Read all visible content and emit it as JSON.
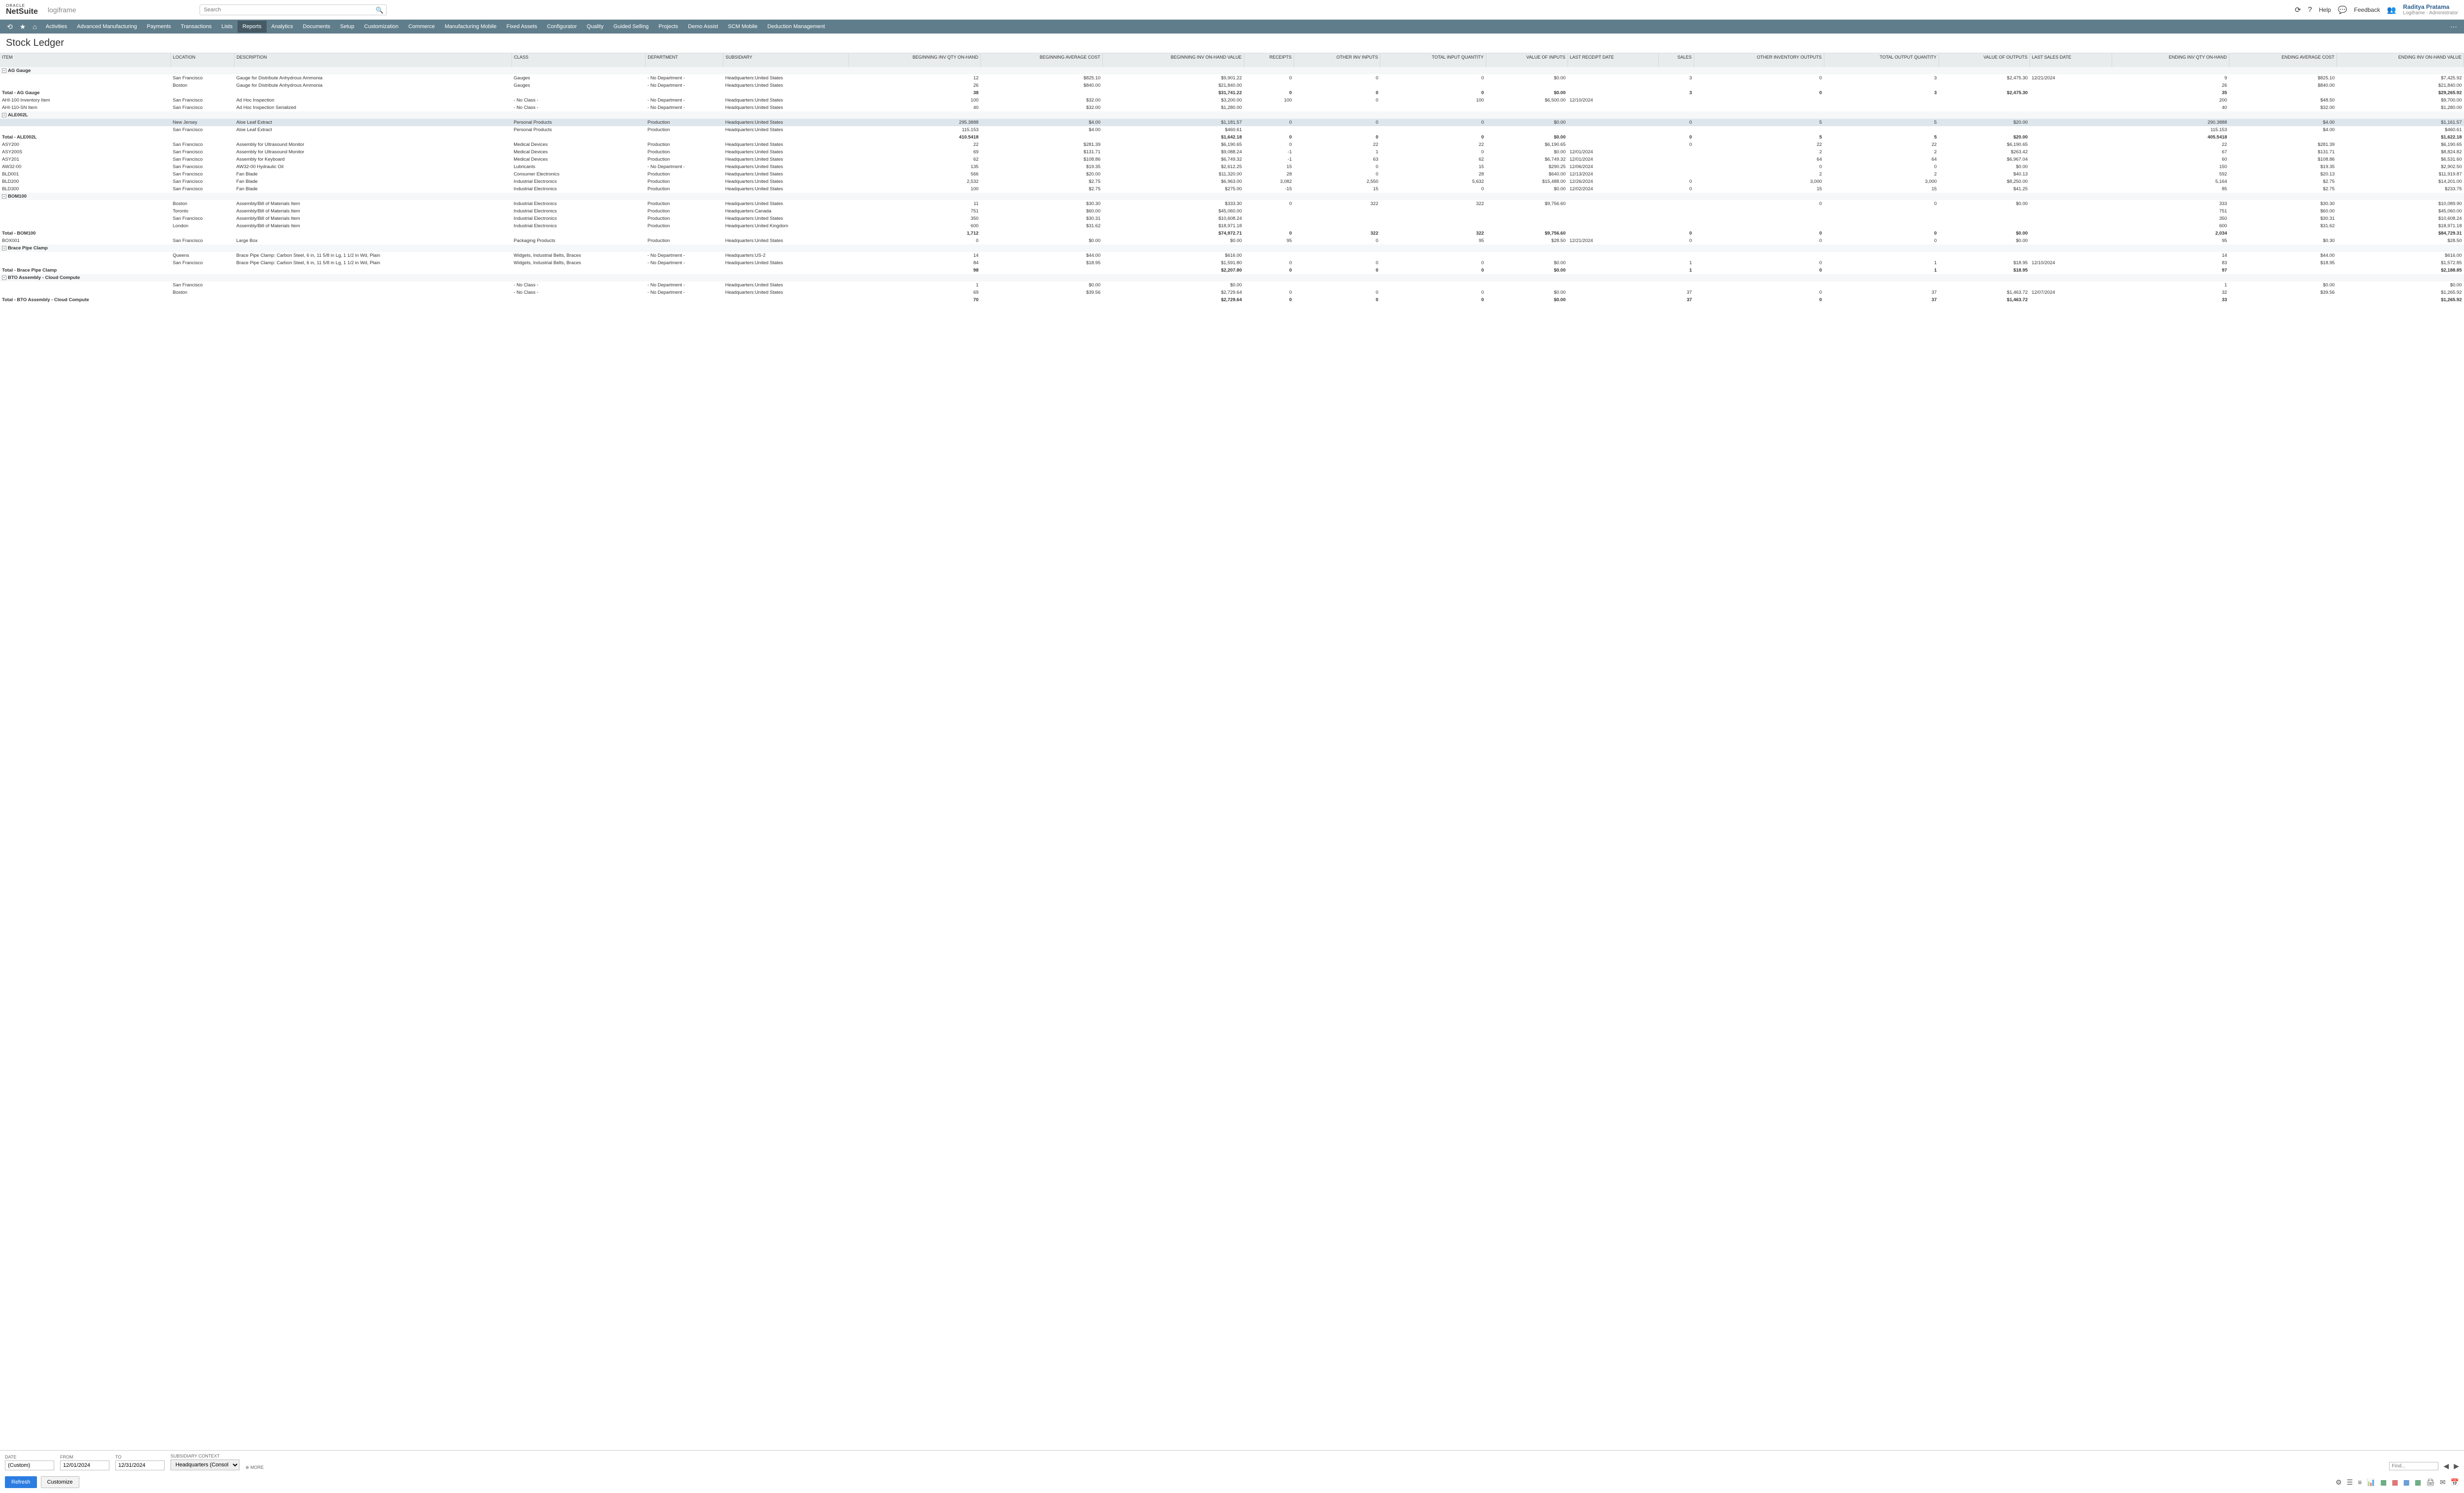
{
  "header": {
    "oracle": "ORACLE",
    "netsuite": "NetSuite",
    "logiframe": "logiframe",
    "search_ph": "Search",
    "help": "Help",
    "feedback": "Feedback",
    "user_name": "Raditya Pratama",
    "user_role": "Logiframe - Administrator"
  },
  "nav": [
    "Activities",
    "Advanced Manufacturing",
    "Payments",
    "Transactions",
    "Lists",
    "Reports",
    "Analytics",
    "Documents",
    "Setup",
    "Customization",
    "Commerce",
    "Manufacturing Mobile",
    "Fixed Assets",
    "Configurator",
    "Quality",
    "Guided Selling",
    "Projects",
    "Demo Assist",
    "SCM Mobile",
    "Deduction Management"
  ],
  "nav_active": 5,
  "page_title": "Stock Ledger",
  "cols": [
    "ITEM",
    "LOCATION",
    "DESCRIPTION",
    "CLASS",
    "DEPARTMENT",
    "SUBSIDIARY",
    "BEGINNING INV QTY ON-HAND",
    "BEGINNING AVERAGE COST",
    "BEGINNING INV ON-HAND VALUE",
    "RECEIPTS",
    "OTHER INV INPUTS",
    "TOTAL INPUT QUANTITY",
    "VALUE OF INPUTS",
    "LAST RECEIPT DATE",
    "SALES",
    "OTHER INVENTORY OUTPUTS",
    "TOTAL OUTPUT QUANTITY",
    "VALUE OF OUTPUTS",
    "LAST SALES DATE",
    "ENDING INV QTY ON-HAND",
    "ENDING AVERAGE COST",
    "ENDING INV ON-HAND VALUE"
  ],
  "rows": [
    {
      "t": "grp",
      "exp": "-",
      "c": [
        "AG Gauge",
        "",
        "",
        "",
        "",
        "",
        "",
        "",
        "",
        "",
        "",
        "",
        "",
        "",
        "",
        "",
        "",
        "",
        "",
        "",
        "",
        ""
      ]
    },
    {
      "c": [
        "",
        "San Francisco",
        "Gauge for Distribute Anhydrous Ammonia",
        "Gauges",
        "- No Department -",
        "Headquarters:United States",
        "12",
        "$825.10",
        "$9,901.22",
        "0",
        "0",
        "0",
        "$0.00",
        "",
        "3",
        "0",
        "3",
        "$2,475.30",
        "12/21/2024",
        "9",
        "$825.10",
        "$7,425.92"
      ]
    },
    {
      "c": [
        "",
        "Boston",
        "Gauge for Distribute Anhydrous Ammonia",
        "Gauges",
        "- No Department -",
        "Headquarters:United States",
        "26",
        "$840.00",
        "$21,840.00",
        "",
        "",
        "",
        "",
        "",
        "",
        "",
        "",
        "",
        "",
        "26",
        "$840.00",
        "$21,840.00"
      ]
    },
    {
      "t": "tot",
      "c": [
        "Total - AG Gauge",
        "",
        "",
        "",
        "",
        "",
        "38",
        "",
        "$31,741.22",
        "0",
        "0",
        "0",
        "$0.00",
        "",
        "3",
        "0",
        "3",
        "$2,475.30",
        "",
        "35",
        "",
        "$29,265.92"
      ]
    },
    {
      "c": [
        "AHI-100 Inventory Item",
        "San Francisco",
        "Ad Hoc Inspection",
        "- No Class -",
        "- No Department -",
        "Headquarters:United States",
        "100",
        "$32.00",
        "$3,200.00",
        "100",
        "0",
        "100",
        "$6,500.00",
        "12/10/2024",
        "",
        "",
        "",
        "",
        "",
        "200",
        "$48.50",
        "$9,700.00"
      ]
    },
    {
      "c": [
        "AHI-110-SN Item",
        "San Francisco",
        "Ad Hoc Inspection Serialized",
        "- No Class -",
        "- No Department -",
        "Headquarters:United States",
        "40",
        "$32.00",
        "$1,280.00",
        "",
        "",
        "",
        "",
        "",
        "",
        "",
        "",
        "",
        "",
        "40",
        "$32.00",
        "$1,280.00"
      ]
    },
    {
      "t": "grp",
      "exp": "-",
      "c": [
        "ALE002L",
        "",
        "",
        "",
        "",
        "",
        "",
        "",
        "",
        "",
        "",
        "",
        "",
        "",
        "",
        "",
        "",
        "",
        "",
        "",
        "",
        ""
      ]
    },
    {
      "t": "hl",
      "c": [
        "",
        "New Jersey",
        "Aloe Leaf Extract",
        "Personal Products",
        "Production",
        "Headquarters:United States",
        "295.3888",
        "$4.00",
        "$1,181.57",
        "0",
        "0",
        "0",
        "$0.00",
        "",
        "0",
        "5",
        "5",
        "$20.00",
        "",
        "290.3888",
        "$4.00",
        "$1,161.57"
      ]
    },
    {
      "c": [
        "",
        "San Francisco",
        "Aloe Leaf Extract",
        "Personal Products",
        "Production",
        "Headquarters:United States",
        "115.153",
        "$4.00",
        "$460.61",
        "",
        "",
        "",
        "",
        "",
        "",
        "",
        "",
        "",
        "",
        "115.153",
        "$4.00",
        "$460.61"
      ]
    },
    {
      "t": "tot",
      "c": [
        "Total - ALE002L",
        "",
        "",
        "",
        "",
        "",
        "410.5418",
        "",
        "$1,642.18",
        "0",
        "0",
        "0",
        "$0.00",
        "",
        "0",
        "5",
        "5",
        "$20.00",
        "",
        "405.5418",
        "",
        "$1,622.18"
      ]
    },
    {
      "c": [
        "ASY200",
        "San Francisco",
        "Assembly for Ultrasound Monitor",
        "Medical Devices",
        "Production",
        "Headquarters:United States",
        "22",
        "$281.39",
        "$6,190.65",
        "0",
        "22",
        "22",
        "$6,190.65",
        "",
        "0",
        "22",
        "22",
        "$6,190.65",
        "",
        "22",
        "$281.39",
        "$6,190.65"
      ]
    },
    {
      "c": [
        "ASY200S",
        "San Francisco",
        "Assembly for Ultrasound Monitor",
        "Medical Devices",
        "Production",
        "Headquarters:United States",
        "69",
        "$131.71",
        "$9,088.24",
        "-1",
        "1",
        "0",
        "$0.00",
        "12/01/2024",
        "",
        "2",
        "2",
        "$263.42",
        "",
        "67",
        "$131.71",
        "$8,824.82"
      ]
    },
    {
      "c": [
        "ASY201",
        "San Francisco",
        "Assembly for Keyboard",
        "Medical Devices",
        "Production",
        "Headquarters:United States",
        "62",
        "$108.86",
        "$6,749.32",
        "-1",
        "63",
        "62",
        "$6,749.32",
        "12/01/2024",
        "",
        "64",
        "64",
        "$6,967.04",
        "",
        "60",
        "$108.86",
        "$6,531.60"
      ]
    },
    {
      "c": [
        "AW32-00",
        "San Francisco",
        "AW32-00 Hydraulic Oil",
        "Lubricants",
        "- No Department -",
        "Headquarters:United States",
        "135",
        "$19.35",
        "$2,612.25",
        "15",
        "0",
        "15",
        "$290.25",
        "12/06/2024",
        "",
        "0",
        "0",
        "$0.00",
        "",
        "150",
        "$19.35",
        "$2,902.50"
      ]
    },
    {
      "c": [
        "BLD001",
        "San Francisco",
        "Fan Blade",
        "Consumer Electronics",
        "Production",
        "Headquarters:United States",
        "566",
        "$20.00",
        "$11,320.00",
        "28",
        "0",
        "28",
        "$640.00",
        "12/13/2024",
        "",
        "2",
        "2",
        "$40.13",
        "",
        "592",
        "$20.13",
        "$11,919.87"
      ]
    },
    {
      "c": [
        "BLD200",
        "San Francisco",
        "Fan Blade",
        "Industrial Electronics",
        "Production",
        "Headquarters:United States",
        "2,532",
        "$2.75",
        "$6,963.00",
        "3,082",
        "2,550",
        "5,632",
        "$15,488.00",
        "12/26/2024",
        "0",
        "3,000",
        "3,000",
        "$8,250.00",
        "",
        "5,164",
        "$2.75",
        "$14,201.00"
      ]
    },
    {
      "c": [
        "BLD300",
        "San Francisco",
        "Fan Blade",
        "Industrial Electronics",
        "Production",
        "Headquarters:United States",
        "100",
        "$2.75",
        "$275.00",
        "-15",
        "15",
        "0",
        "$0.00",
        "12/02/2024",
        "0",
        "15",
        "15",
        "$41.25",
        "",
        "85",
        "$2.75",
        "$233.75"
      ]
    },
    {
      "t": "grp",
      "exp": "-",
      "c": [
        "BOM100",
        "",
        "",
        "",
        "",
        "",
        "",
        "",
        "",
        "",
        "",
        "",
        "",
        "",
        "",
        "",
        "",
        "",
        "",
        "",
        "",
        ""
      ]
    },
    {
      "c": [
        "",
        "Boston",
        "Assembly/Bill of Materials Item",
        "Industrial Electronics",
        "Production",
        "Headquarters:United States",
        "11",
        "$30.30",
        "$333.30",
        "0",
        "322",
        "322",
        "$9,756.60",
        "",
        "",
        "0",
        "0",
        "$0.00",
        "",
        "333",
        "$30.30",
        "$10,089.90"
      ]
    },
    {
      "c": [
        "",
        "Toronto",
        "Assembly/Bill of Materials Item",
        "Industrial Electronics",
        "Production",
        "Headquarters:Canada",
        "751",
        "$60.00",
        "$45,060.00",
        "",
        "",
        "",
        "",
        "",
        "",
        "",
        "",
        "",
        "",
        "751",
        "$60.00",
        "$45,060.00"
      ]
    },
    {
      "c": [
        "",
        "San Francisco",
        "Assembly/Bill of Materials Item",
        "Industrial Electronics",
        "Production",
        "Headquarters:United States",
        "350",
        "$30.31",
        "$10,608.24",
        "",
        "",
        "",
        "",
        "",
        "",
        "",
        "",
        "",
        "",
        "350",
        "$30.31",
        "$10,608.24"
      ]
    },
    {
      "c": [
        "",
        "London",
        "Assembly/Bill of Materials Item",
        "Industrial Electronics",
        "Production",
        "Headquarters:United Kingdom",
        "600",
        "$31.62",
        "$18,971.18",
        "",
        "",
        "",
        "",
        "",
        "",
        "",
        "",
        "",
        "",
        "600",
        "$31.62",
        "$18,971.18"
      ]
    },
    {
      "t": "tot",
      "c": [
        "Total - BOM100",
        "",
        "",
        "",
        "",
        "",
        "1,712",
        "",
        "$74,972.71",
        "0",
        "322",
        "322",
        "$9,756.60",
        "",
        "0",
        "0",
        "0",
        "$0.00",
        "",
        "2,034",
        "",
        "$84,729.31"
      ]
    },
    {
      "c": [
        "BOX001",
        "San Francisco",
        "Large Box",
        "Packaging Products",
        "Production",
        "Headquarters:United States",
        "0",
        "$0.00",
        "$0.00",
        "95",
        "0",
        "95",
        "$28.50",
        "12/21/2024",
        "0",
        "0",
        "0",
        "$0.00",
        "",
        "95",
        "$0.30",
        "$28.50"
      ]
    },
    {
      "t": "grp",
      "exp": "-",
      "c": [
        "Brace Pipe Clamp",
        "",
        "",
        "",
        "",
        "",
        "",
        "",
        "",
        "",
        "",
        "",
        "",
        "",
        "",
        "",
        "",
        "",
        "",
        "",
        "",
        ""
      ]
    },
    {
      "c": [
        "",
        "Queens",
        "Brace Pipe Clamp: Carbon Steel, 6 in, 11 5/8 in Lg, 1 1/2 in Wd, Plain",
        "Widgets, Industrial Belts, Braces",
        "- No Department -",
        "Headquarters:US-2",
        "14",
        "$44.00",
        "$616.00",
        "",
        "",
        "",
        "",
        "",
        "",
        "",
        "",
        "",
        "",
        "14",
        "$44.00",
        "$616.00"
      ]
    },
    {
      "c": [
        "",
        "San Francisco",
        "Brace Pipe Clamp: Carbon Steel, 6 in, 11 5/8 in Lg, 1 1/2 in Wd, Plain",
        "Widgets, Industrial Belts, Braces",
        "- No Department -",
        "Headquarters:United States",
        "84",
        "$18.95",
        "$1,591.80",
        "0",
        "0",
        "0",
        "$0.00",
        "",
        "1",
        "0",
        "1",
        "$18.95",
        "12/10/2024",
        "83",
        "$18.95",
        "$1,572.85"
      ]
    },
    {
      "t": "tot",
      "c": [
        "Total - Brace Pipe Clamp",
        "",
        "",
        "",
        "",
        "",
        "98",
        "",
        "$2,207.80",
        "0",
        "0",
        "0",
        "$0.00",
        "",
        "1",
        "0",
        "1",
        "$18.95",
        "",
        "97",
        "",
        "$2,188.85"
      ]
    },
    {
      "t": "grp",
      "exp": "-",
      "c": [
        "BTO Assembly - Cloud Compute",
        "",
        "",
        "",
        "",
        "",
        "",
        "",
        "",
        "",
        "",
        "",
        "",
        "",
        "",
        "",
        "",
        "",
        "",
        "",
        "",
        ""
      ]
    },
    {
      "c": [
        "",
        "San Francisco",
        "",
        "- No Class -",
        "- No Department -",
        "Headquarters:United States",
        "1",
        "$0.00",
        "$0.00",
        "",
        "",
        "",
        "",
        "",
        "",
        "",
        "",
        "",
        "",
        "1",
        "$0.00",
        "$0.00"
      ]
    },
    {
      "c": [
        "",
        "Boston",
        "",
        "- No Class -",
        "- No Department -",
        "Headquarters:United States",
        "69",
        "$39.56",
        "$2,729.64",
        "0",
        "0",
        "0",
        "$0.00",
        "",
        "37",
        "0",
        "37",
        "$1,463.72",
        "12/07/2024",
        "32",
        "$39.56",
        "$1,265.92"
      ]
    },
    {
      "t": "tot",
      "c": [
        "Total - BTO Assembly - Cloud Compute",
        "",
        "",
        "",
        "",
        "",
        "70",
        "",
        "$2,729.64",
        "0",
        "0",
        "0",
        "$0.00",
        "",
        "37",
        "0",
        "37",
        "$1,463.72",
        "",
        "33",
        "",
        "$1,265.92"
      ]
    }
  ],
  "filters": {
    "date_lbl": "DATE",
    "date": "(Custom)",
    "from_lbl": "FROM",
    "from": "12/01/2024",
    "to_lbl": "TO",
    "to": "12/31/2024",
    "sub_lbl": "SUBSIDIARY CONTEXT",
    "sub": "Headquarters (Consolidated)",
    "more": "MORE"
  },
  "buttons": {
    "refresh": "Refresh",
    "customize": "Customize",
    "find_ph": "Find..."
  }
}
